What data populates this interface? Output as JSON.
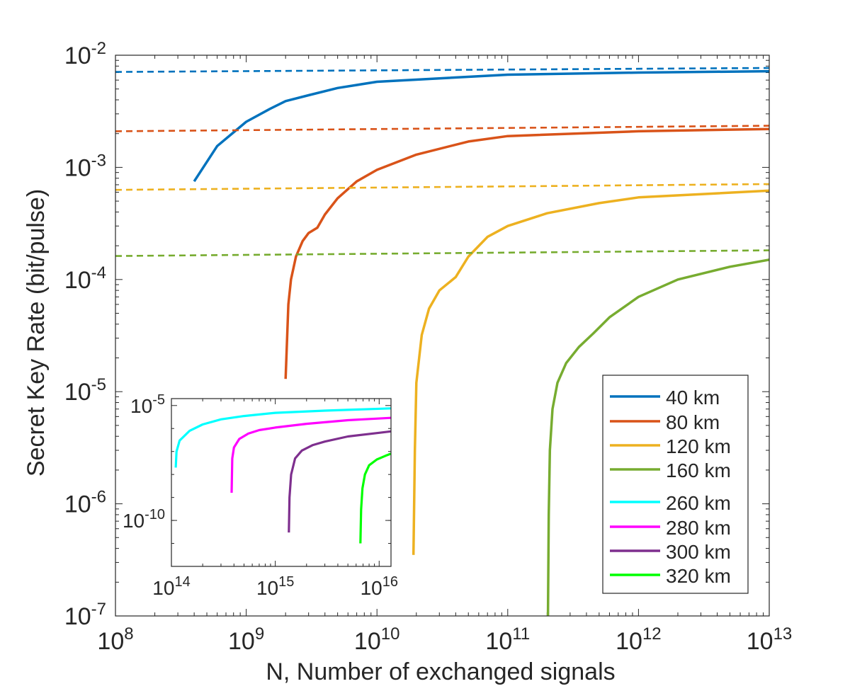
{
  "chart_data": [
    {
      "type": "line",
      "xscale": "log",
      "yscale": "log",
      "xlabel": "N, Number of exchanged signals",
      "ylabel": "Secret Key Rate (bit/pulse)",
      "xlim": [
        100000000.0,
        10000000000000.0
      ],
      "ylim": [
        1e-07,
        0.01
      ],
      "x_ticks": [
        {
          "value": 100000000.0,
          "base": "10",
          "exp": "8"
        },
        {
          "value": 1000000000.0,
          "base": "10",
          "exp": "9"
        },
        {
          "value": 10000000000.0,
          "base": "10",
          "exp": "10"
        },
        {
          "value": 100000000000.0,
          "base": "10",
          "exp": "11"
        },
        {
          "value": 1000000000000.0,
          "base": "10",
          "exp": "12"
        },
        {
          "value": 10000000000000.0,
          "base": "10",
          "exp": "13"
        }
      ],
      "y_ticks": [
        {
          "value": 1e-07,
          "base": "10",
          "exp": "-7"
        },
        {
          "value": 1e-06,
          "base": "10",
          "exp": "-6"
        },
        {
          "value": 1e-05,
          "base": "10",
          "exp": "-5"
        },
        {
          "value": 0.0001,
          "base": "10",
          "exp": "-4"
        },
        {
          "value": 0.001,
          "base": "10",
          "exp": "-3"
        },
        {
          "value": 0.01,
          "base": "10",
          "exp": "-2"
        }
      ],
      "legend_position": "bottom-right",
      "series": [
        {
          "name": "40 km",
          "color": "#0072BD",
          "style": "solid",
          "x": [
            400000000.0,
            600000000.0,
            800000000.0,
            1000000000.0,
            1500000000.0,
            2000000000.0,
            3000000000.0,
            5000000000.0,
            10000000000.0,
            100000000000.0,
            1000000000000.0,
            10000000000000.0
          ],
          "y": [
            0.00075,
            0.00155,
            0.00205,
            0.00255,
            0.0033,
            0.0039,
            0.0044,
            0.0051,
            0.0058,
            0.0067,
            0.007,
            0.0072
          ]
        },
        {
          "name": "40 km (asymptotic)",
          "color": "#0072BD",
          "style": "dashed",
          "x": [
            100000000.0,
            10000000000000.0
          ],
          "y": [
            0.0071,
            0.0077
          ]
        },
        {
          "name": "80 km",
          "color": "#D95319",
          "style": "solid",
          "x": [
            2000000000.0,
            2100000000.0,
            2200000000.0,
            2400000000.0,
            2700000000.0,
            3000000000.0,
            3500000000.0,
            4000000000.0,
            5000000000.0,
            7000000000.0,
            10000000000.0,
            20000000000.0,
            50000000000.0,
            100000000000.0,
            1000000000000.0,
            10000000000000.0
          ],
          "y": [
            1.3e-05,
            6e-05,
            0.0001,
            0.00016,
            0.00022,
            0.00026,
            0.00029,
            0.00038,
            0.00053,
            0.00075,
            0.00095,
            0.0013,
            0.0017,
            0.0019,
            0.0021,
            0.0022
          ]
        },
        {
          "name": "80 km (asymptotic)",
          "color": "#D95319",
          "style": "dashed",
          "x": [
            100000000.0,
            10000000000000.0
          ],
          "y": [
            0.0021,
            0.00235
          ]
        },
        {
          "name": "120 km",
          "color": "#EDB120",
          "style": "solid",
          "x": [
            19000000000.0,
            19500000000.0,
            20000000000.0,
            22000000000.0,
            25000000000.0,
            30000000000.0,
            40000000000.0,
            50000000000.0,
            70000000000.0,
            100000000000.0,
            200000000000.0,
            500000000000.0,
            1000000000000.0,
            10000000000000.0
          ],
          "y": [
            3.5e-07,
            3e-06,
            1.2e-05,
            3.2e-05,
            5.5e-05,
            8e-05,
            0.000105,
            0.00016,
            0.00024,
            0.0003,
            0.00039,
            0.00048,
            0.00054,
            0.00062
          ]
        },
        {
          "name": "120 km (asymptotic)",
          "color": "#EDB120",
          "style": "dashed",
          "x": [
            100000000.0,
            10000000000000.0
          ],
          "y": [
            0.00063,
            0.00071
          ]
        },
        {
          "name": "160 km",
          "color": "#77AC30",
          "style": "solid",
          "x": [
            203000000000.0,
            206000000000.0,
            210000000000.0,
            220000000000.0,
            240000000000.0,
            280000000000.0,
            350000000000.0,
            450000000000.0,
            600000000000.0,
            1000000000000.0,
            2000000000000.0,
            5000000000000.0,
            10000000000000.0
          ],
          "y": [
            1e-07,
            8e-07,
            3e-06,
            7e-06,
            1.2e-05,
            1.8e-05,
            2.5e-05,
            3.3e-05,
            4.6e-05,
            7e-05,
            0.0001,
            0.00013,
            0.00015
          ]
        },
        {
          "name": "160 km (asymptotic)",
          "color": "#77AC30",
          "style": "dashed",
          "x": [
            100000000.0,
            10000000000000.0
          ],
          "y": [
            0.000162,
            0.000182
          ]
        }
      ],
      "legend": [
        {
          "label": "40 km",
          "color": "#0072BD"
        },
        {
          "label": "80 km",
          "color": "#D95319"
        },
        {
          "label": "120 km",
          "color": "#EDB120"
        },
        {
          "label": "160 km",
          "color": "#77AC30"
        },
        {
          "label": "260 km",
          "color": "#00FFFF"
        },
        {
          "label": "280 km",
          "color": "#FF00FF"
        },
        {
          "label": "300 km",
          "color": "#7E2F8E"
        },
        {
          "label": "320 km",
          "color": "#00FF00"
        }
      ]
    },
    {
      "type": "line",
      "role": "inset",
      "xscale": "log",
      "yscale": "log",
      "xlim": [
        100000000000000.0,
        1.3e+16
      ],
      "ylim": [
        1e-12,
        2e-05
      ],
      "x_ticks": [
        {
          "value": 100000000000000.0,
          "base": "10",
          "exp": "14"
        },
        {
          "value": 1000000000000000.0,
          "base": "10",
          "exp": "15"
        },
        {
          "value": 1e+16,
          "base": "10",
          "exp": "16"
        }
      ],
      "y_ticks": [
        {
          "value": 1e-05,
          "base": "10",
          "exp": "-5"
        },
        {
          "value": 1e-10,
          "base": "10",
          "exp": "-10"
        }
      ],
      "series": [
        {
          "name": "260 km",
          "color": "#00FFFF",
          "x": [
            110000000000000.0,
            112000000000000.0,
            120000000000000.0,
            150000000000000.0,
            200000000000000.0,
            300000000000000.0,
            500000000000000.0,
            1000000000000000.0,
            3000000000000000.0,
            1.3e+16
          ],
          "y": [
            2e-08,
            1e-07,
            3e-07,
            8e-07,
            1.5e-06,
            2.5e-06,
            3.5e-06,
            4.8e-06,
            6e-06,
            7.5e-06
          ]
        },
        {
          "name": "280 km",
          "color": "#FF00FF",
          "x": [
            380000000000000.0,
            385000000000000.0,
            400000000000000.0,
            450000000000000.0,
            550000000000000.0,
            700000000000000.0,
            1000000000000000.0,
            2000000000000000.0,
            5000000000000000.0,
            1.3e+16
          ],
          "y": [
            1.6e-09,
            5e-08,
            1.5e-07,
            3.5e-07,
            6e-07,
            8.5e-07,
            1.1e-06,
            1.6e-06,
            2.3e-06,
            2.9e-06
          ]
        },
        {
          "name": "300 km",
          "color": "#7E2F8E",
          "x": [
            1350000000000000.0,
            1370000000000000.0,
            1420000000000000.0,
            1550000000000000.0,
            1800000000000000.0,
            2300000000000000.0,
            3000000000000000.0,
            5000000000000000.0,
            1e+16,
            1.3e+16
          ],
          "y": [
            3e-11,
            1e-09,
            1e-08,
            5e-08,
            1.1e-07,
            1.9e-07,
            2.7e-07,
            4.5e-07,
            6.5e-07,
            7.5e-07
          ]
        },
        {
          "name": "320 km",
          "color": "#00FF00",
          "x": [
            6600000000000000.0,
            6700000000000000.0,
            6900000000000000.0,
            7300000000000000.0,
            8000000000000000.0,
            9500000000000000.0,
            1.15e+16,
            1.3e+16
          ],
          "y": [
            1e-11,
            3e-10,
            2.5e-09,
            1e-08,
            2.5e-08,
            4.5e-08,
            6.5e-08,
            8e-08
          ]
        }
      ]
    }
  ]
}
